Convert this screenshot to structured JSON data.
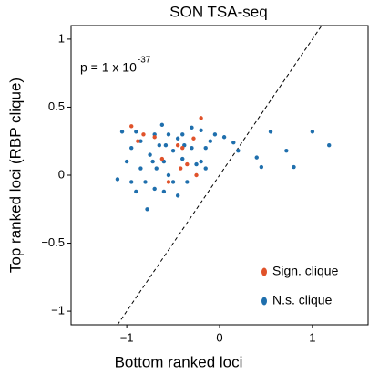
{
  "chart_data": {
    "type": "scatter",
    "title": "SON TSA-seq",
    "x_label": "Bottom ranked loci",
    "y_label": "Top ranked loci (RBP clique)",
    "annotation": {
      "text": "p = 1 x 10",
      "superscript": "-37"
    },
    "xlim": [
      -1.6,
      1.6
    ],
    "ylim": [
      -1.1,
      1.1
    ],
    "xticks": [
      {
        "value": -1,
        "label": "−1"
      },
      0,
      1
    ],
    "yticks": [
      {
        "value": -1,
        "label": "−1"
      },
      {
        "value": -0.5,
        "label": "−0.5"
      },
      0,
      0.5,
      1
    ],
    "identity_line": true,
    "legend": "lower right",
    "series": [
      {
        "name": "N.s. clique",
        "color": "#1f6fad",
        "x": [
          1.0,
          1.18,
          0.72,
          0.55,
          0.4,
          0.45,
          0.8,
          0.2,
          0.15,
          0.05,
          -0.05,
          -0.1,
          -0.15,
          -0.2,
          -1.1,
          -1.0,
          -0.95,
          -0.9,
          -0.85,
          -0.8,
          -0.75,
          -0.7,
          -0.65,
          -0.6,
          -0.55,
          -0.5,
          -0.45,
          -0.4,
          -0.35,
          -0.3,
          -0.25,
          -0.78,
          -0.9,
          -0.6,
          -0.45,
          -0.55,
          -1.05,
          -0.68,
          -0.5,
          -0.3,
          -0.62,
          -0.85,
          -0.4,
          -0.2,
          -0.7,
          -0.58,
          -0.38,
          -0.15,
          -0.95,
          -0.72
        ],
        "y": [
          0.32,
          0.22,
          0.18,
          0.32,
          0.13,
          0.06,
          0.06,
          0.18,
          0.24,
          0.28,
          0.3,
          0.25,
          0.2,
          0.33,
          -0.03,
          0.1,
          0.2,
          0.32,
          0.05,
          -0.05,
          0.15,
          0.3,
          0.22,
          0.1,
          0.0,
          0.18,
          0.27,
          0.12,
          -0.05,
          0.2,
          0.08,
          -0.25,
          -0.12,
          -0.12,
          -0.15,
          0.3,
          0.32,
          0.05,
          -0.05,
          0.35,
          0.37,
          0.25,
          0.3,
          0.1,
          -0.1,
          0.22,
          0.22,
          0.05,
          -0.05,
          0.1
        ]
      },
      {
        "name": "Sign. clique",
        "color": "#e0522a",
        "x": [
          -0.95,
          -0.88,
          -0.82,
          -0.7,
          -0.62,
          -0.55,
          -0.45,
          -0.42,
          -0.4,
          -0.35,
          -0.28,
          -0.2,
          -0.25
        ],
        "y": [
          0.36,
          0.25,
          0.3,
          0.28,
          0.12,
          -0.05,
          0.22,
          0.05,
          0.2,
          0.08,
          0.27,
          0.42,
          0.0
        ]
      }
    ]
  }
}
